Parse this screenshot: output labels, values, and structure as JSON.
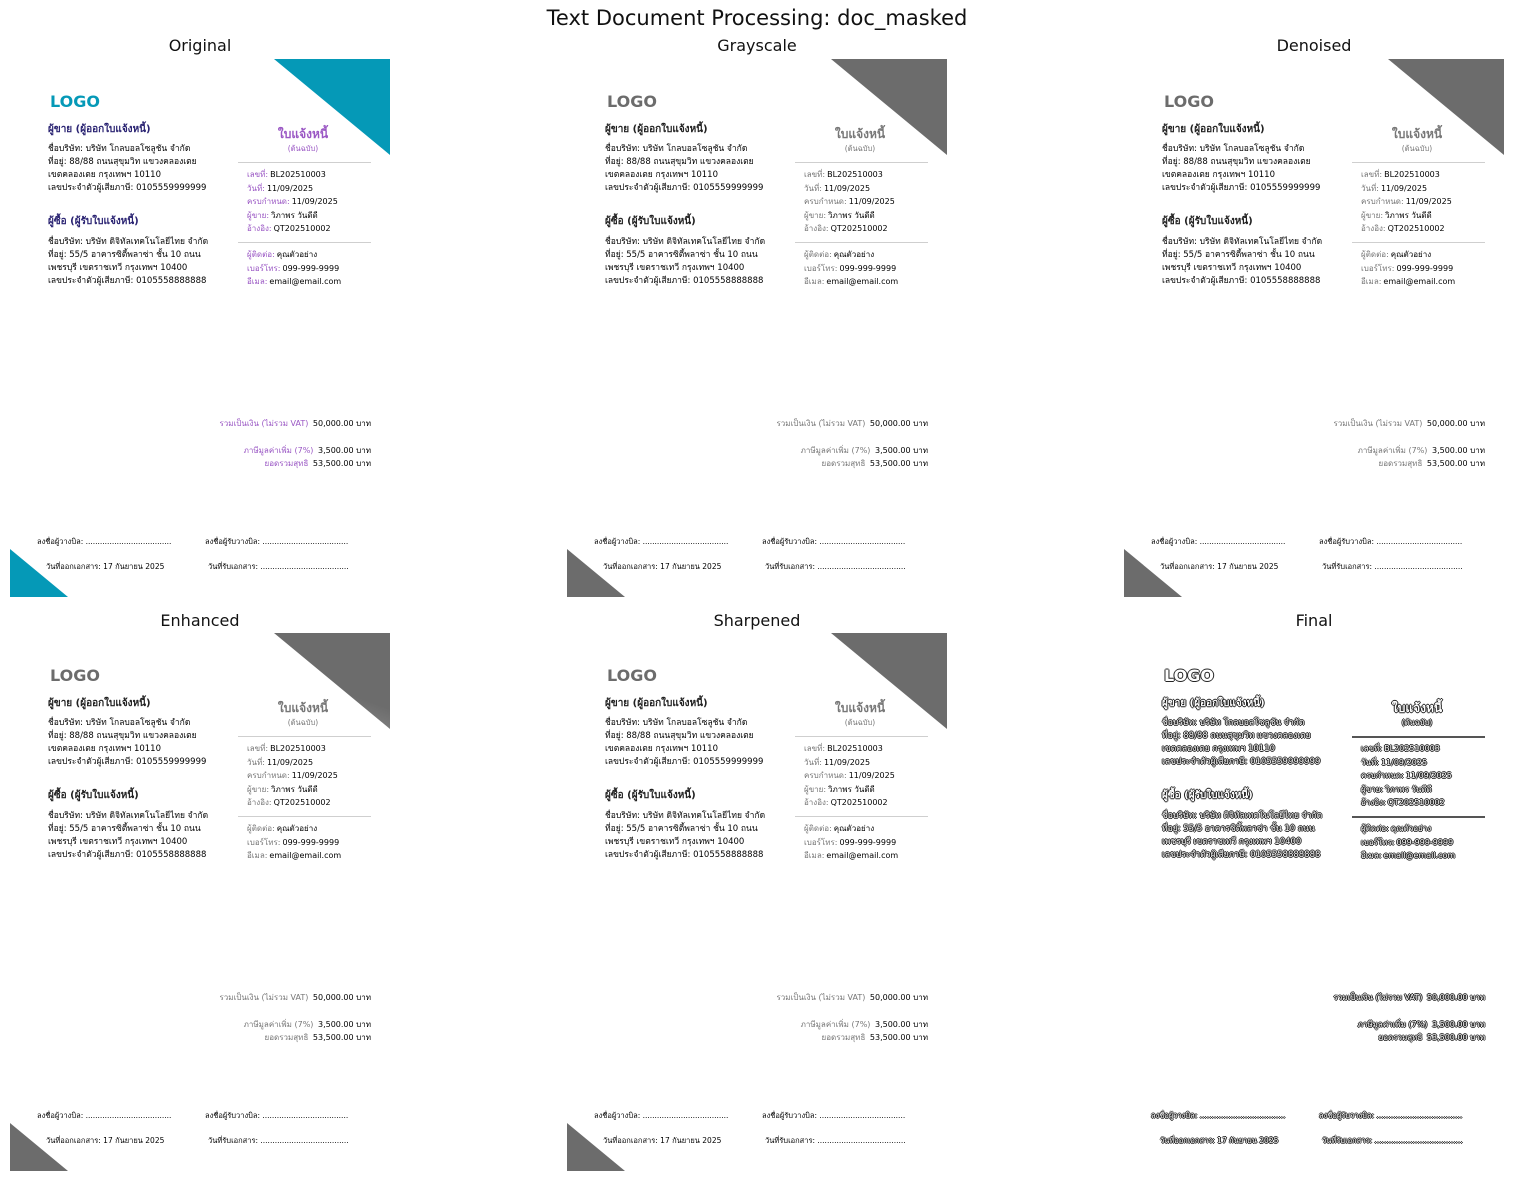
{
  "figure_title": "Text Document Processing: doc_masked",
  "panels": [
    {
      "title": "Original",
      "variant": "v-orig"
    },
    {
      "title": "Grayscale",
      "variant": "v-gray"
    },
    {
      "title": "Denoised",
      "variant": "v-gray"
    },
    {
      "title": "Enhanced",
      "variant": "v-gray v-blur"
    },
    {
      "title": "Sharpened",
      "variant": "v-gray"
    },
    {
      "title": "Final",
      "variant": "v-gray v-final"
    }
  ],
  "doc": {
    "logo": "LOGO",
    "seller_heading": "ผู้ขาย (ผู้ออกใบแจ้งหนี้)",
    "seller_lines": [
      "ชื่อบริษัท: บริษัท โกลบอลโซลูชัน จำกัด",
      "ที่อยู่: 88/88 ถนนสุขุมวิท แขวงคลองเตย",
      "เขตคลองเตย กรุงเทพฯ 10110",
      "เลขประจำตัวผู้เสียภาษี: 0105559999999"
    ],
    "buyer_heading": "ผู้ซื้อ (ผู้รับใบแจ้งหนี้)",
    "buyer_lines": [
      "ชื่อบริษัท: บริษัท ดิจิทัลเทคโนโลยีไทย จำกัด",
      "ที่อยู่: 55/5 อาคารซิตี้พลาซ่า ชั้น 10 ถนน",
      "เพชรบุรี เขตราชเทวี กรุงเทพฯ 10400",
      "เลขประจำตัวผู้เสียภาษี: 0105558888888"
    ],
    "doc_title": "ใบแจ้งหนี้",
    "doc_subtitle": "(ต้นฉบับ)",
    "meta": [
      {
        "label": "เลขที่:",
        "value": "BL202510003"
      },
      {
        "label": "วันที่:",
        "value": "11/09/2025"
      },
      {
        "label": "ครบกำหนด:",
        "value": "11/09/2025"
      },
      {
        "label": "ผู้ขาย:",
        "value": "วิภาพร วันดีดี"
      },
      {
        "label": "อ้างอิง:",
        "value": "QT202510002"
      }
    ],
    "contact": [
      {
        "label": "ผู้ติดต่อ:",
        "value": "คุณตัวอย่าง"
      },
      {
        "label": "เบอร์โทร:",
        "value": "099-999-9999"
      },
      {
        "label": "อีเมล:",
        "value": "email@email.com"
      }
    ],
    "totals": [
      {
        "label": "รวมเป็นเงิน (ไม่รวม VAT)",
        "value": "50,000.00 บาท"
      },
      {
        "label": "ภาษีมูลค่าเพิ่ม (7%)",
        "value": "3,500.00 บาท"
      },
      {
        "label": "ยอดรวมสุทธิ",
        "value": "53,500.00 บาท"
      }
    ],
    "sign_biller": "ลงชื่อผู้วางบิล: ....................................",
    "sign_receiver": "ลงชื่อผู้รับวางบิล: ....................................",
    "issue_date": "วันที่ออกเอกสาร: 17 กันยายน 2025",
    "receive_date": "วันที่รับเอกสาร: ....................................."
  }
}
